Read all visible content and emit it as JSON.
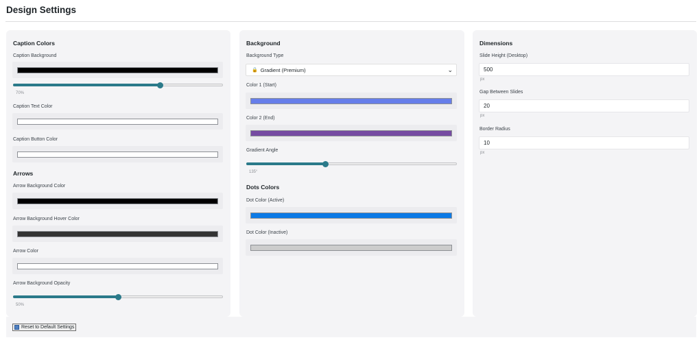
{
  "page": {
    "title": "Design Settings"
  },
  "caption_colors": {
    "title": "Caption Colors",
    "background_label": "Caption Background",
    "background_color": "#000000",
    "opacity_value": 0.7,
    "opacity_hint": "70%",
    "text_color_label": "Caption Text Color",
    "text_color": "#ffffff",
    "button_color_label": "Caption Button Color",
    "button_color": "#ffffff"
  },
  "arrows": {
    "title": "Arrows",
    "bg_label": "Arrow Background Color",
    "bg_color": "#000000",
    "hover_label": "Arrow Background Hover Color",
    "hover_color": "#333333",
    "color_label": "Arrow Color",
    "color": "#ffffff",
    "opacity_label": "Arrow Background Opacity",
    "opacity_value": 0.5,
    "opacity_hint": "50%"
  },
  "background": {
    "title": "Background",
    "type_label": "Background Type",
    "type_value": "Gradient (Premium)",
    "color1_label": "Color 1 (Start)",
    "color1": "#667eea",
    "color2_label": "Color 2 (End)",
    "color2": "#764ba2",
    "angle_label": "Gradient Angle",
    "angle_fraction": 0.375,
    "angle_hint": "135°"
  },
  "dots": {
    "title": "Dots Colors",
    "active_label": "Dot Color (Active)",
    "active_color": "#0c7ae6",
    "inactive_label": "Dot Color (Inactive)",
    "inactive_color": "#cccccc"
  },
  "dimensions": {
    "title": "Dimensions",
    "height_label": "Slide Height (Desktop)",
    "height_value": "500",
    "height_unit": "px",
    "gap_label": "Gap Between Slides",
    "gap_value": "20",
    "gap_unit": "px",
    "radius_label": "Border Radius",
    "radius_value": "10",
    "radius_unit": "px"
  },
  "footer": {
    "reset_label": "Reset to Default Settings"
  },
  "colors": {
    "accent": "#2b7a8a"
  }
}
